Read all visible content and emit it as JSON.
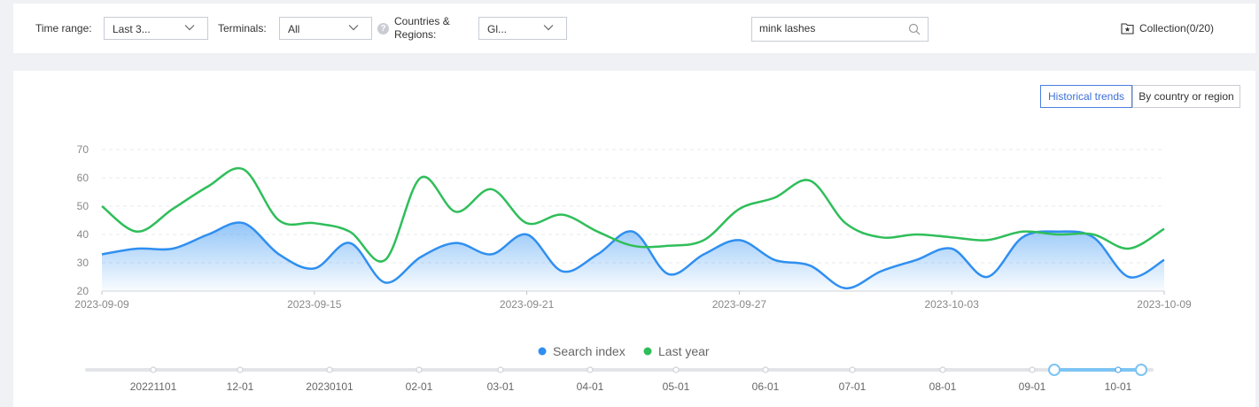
{
  "filters": {
    "time_range_label": "Time range:",
    "time_range_value": "Last 3...",
    "terminals_label": "Terminals:",
    "terminals_value": "All",
    "countries_label_line1": "Countries &",
    "countries_label_line2": "Regions:",
    "countries_value": "Gl...",
    "search_value": "mink lashes",
    "collection_label": "Collection(0/20)"
  },
  "tabs": [
    "Historical trends",
    "By country or region"
  ],
  "legend": [
    "Search index",
    "Last year"
  ],
  "colors": {
    "search_index": "#2f8ff0",
    "last_year": "#2fbe5a",
    "accent": "#4a7fe0"
  },
  "chart_data": {
    "type": "area",
    "x": [
      "2023-09-09",
      "2023-09-10",
      "2023-09-11",
      "2023-09-12",
      "2023-09-13",
      "2023-09-14",
      "2023-09-15",
      "2023-09-16",
      "2023-09-17",
      "2023-09-18",
      "2023-09-19",
      "2023-09-20",
      "2023-09-21",
      "2023-09-22",
      "2023-09-23",
      "2023-09-24",
      "2023-09-25",
      "2023-09-26",
      "2023-09-27",
      "2023-09-28",
      "2023-09-29",
      "2023-09-30",
      "2023-10-01",
      "2023-10-02",
      "2023-10-03",
      "2023-10-04",
      "2023-10-05",
      "2023-10-06",
      "2023-10-07",
      "2023-10-08",
      "2023-10-09"
    ],
    "xticks": [
      "2023-09-09",
      "2023-09-15",
      "2023-09-21",
      "2023-09-27",
      "2023-10-03",
      "2023-10-09"
    ],
    "ylim": [
      20,
      70
    ],
    "yticks": [
      20,
      30,
      40,
      50,
      60,
      70
    ],
    "grid": true,
    "legend_position": "bottom",
    "series": [
      {
        "name": "Search index",
        "values": [
          33,
          35,
          35,
          40,
          44,
          33,
          28,
          37,
          23,
          32,
          37,
          33,
          40,
          27,
          33,
          41,
          26,
          33,
          38,
          31,
          29,
          21,
          27,
          31,
          35,
          25,
          39,
          41,
          39,
          25,
          31
        ]
      },
      {
        "name": "Last year",
        "values": [
          50,
          41,
          49,
          57,
          63,
          45,
          44,
          41,
          31,
          60,
          48,
          56,
          44,
          47,
          41,
          36,
          36,
          38,
          49,
          53,
          59,
          44,
          39,
          40,
          39,
          38,
          41,
          40,
          40,
          35,
          42
        ]
      }
    ],
    "slider_ticks": [
      "20221101",
      "12-01",
      "20230101",
      "02-01",
      "03-01",
      "04-01",
      "05-01",
      "06-01",
      "07-01",
      "08-01",
      "09-01",
      "10-01"
    ]
  }
}
